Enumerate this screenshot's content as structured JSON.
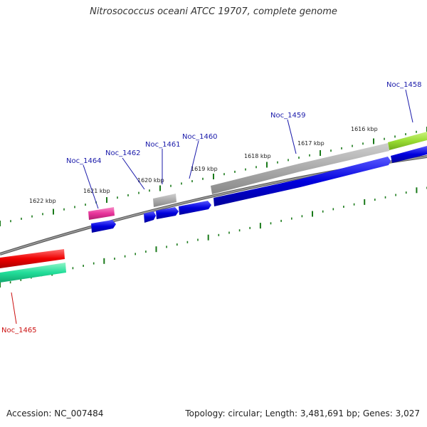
{
  "title": "Nitrosococcus oceani ATCC 19707, complete genome",
  "footer": {
    "accession": "Accession: NC_007484",
    "summary": "Topology: circular; Length: 3,481,691 bp; Genes: 3,027"
  },
  "tick_labels": [
    "1616 kbp",
    "1617 kbp",
    "1618 kbp",
    "1619 kbp",
    "1620 kbp",
    "1621 kbp",
    "1622 kbp"
  ],
  "gene_labels": [
    "Noc_1458",
    "Noc_1459",
    "Noc_1460",
    "Noc_1461",
    "Noc_1462",
    "Noc_1464",
    "Noc_1465"
  ],
  "colors": {
    "backbone": "#808080",
    "tick": "#1a7a1a",
    "label_blue": "#1a1aaa",
    "label_red": "#cc1111",
    "cds_blue": "#0000dd",
    "gray_feature": "#aaaaaa",
    "pink_feature": "#e8339a",
    "green_feature": "#99dd33",
    "red_feature": "#ee0000",
    "teal_feature": "#22dd99"
  }
}
